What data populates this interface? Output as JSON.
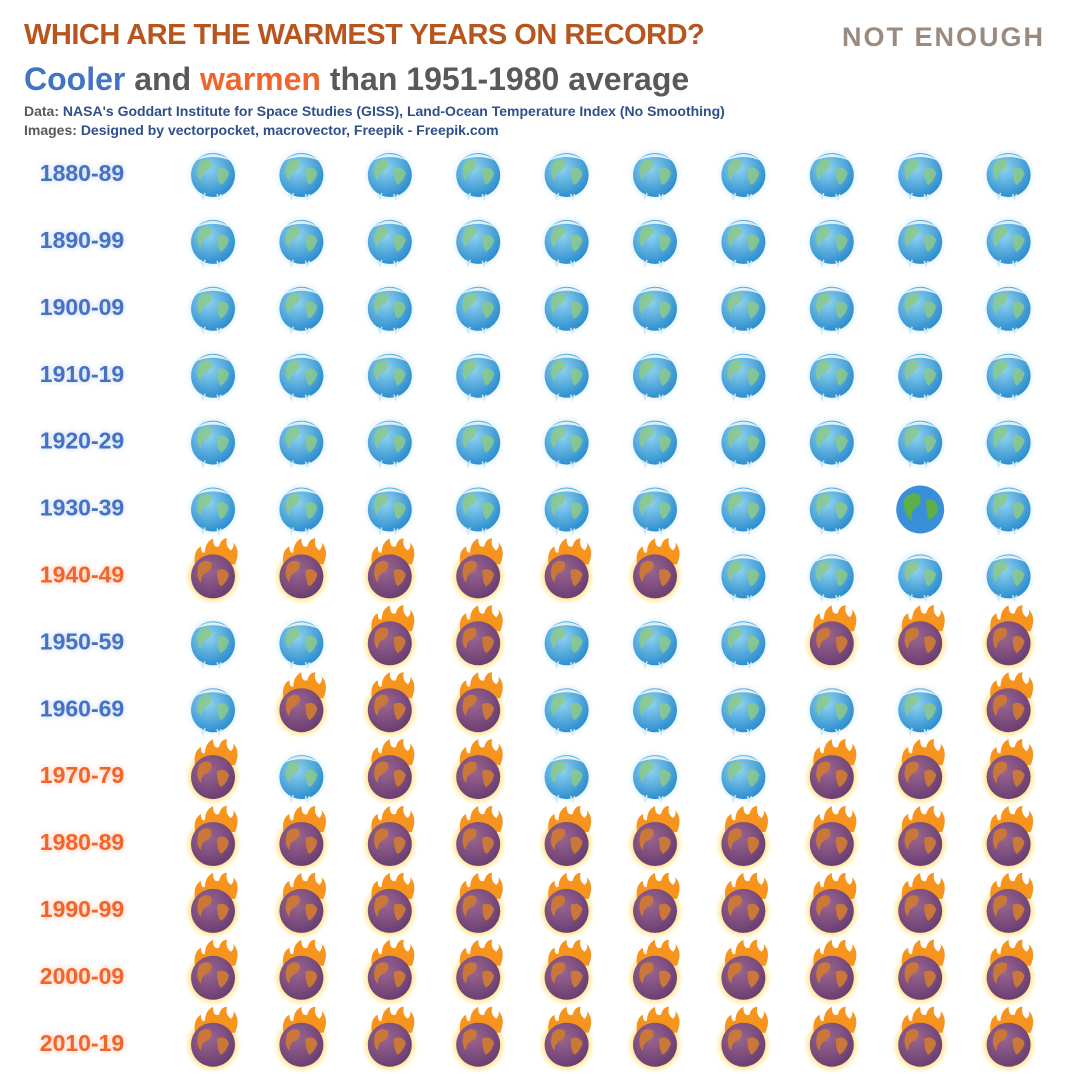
{
  "header": {
    "title": "WHICH ARE THE WARMEST YEARS ON RECORD?",
    "logo": "NOT ENOUGH",
    "subtitle": {
      "cool_word": "Cooler",
      "joiner": "and",
      "warm_word": "warmen",
      "rest": "than 1951-1980 average"
    },
    "data_source": {
      "label": "Data:",
      "text": "NASA's Goddart Institute for Space Studies (GISS), Land-Ocean Temperature Index (No Smoothing)"
    },
    "images_credit": {
      "label": "Images:",
      "text": "Designed by vectorpocket, macrovector, Freepik - Freepik.com"
    }
  },
  "grid": {
    "rows": [
      {
        "label": "1880-89",
        "style": "cool",
        "cells": [
          "cool",
          "cool",
          "cool",
          "cool",
          "cool",
          "cool",
          "cool",
          "cool",
          "cool",
          "cool"
        ]
      },
      {
        "label": "1890-99",
        "style": "cool",
        "cells": [
          "cool",
          "cool",
          "cool",
          "cool",
          "cool",
          "cool",
          "cool",
          "cool",
          "cool",
          "cool"
        ]
      },
      {
        "label": "1900-09",
        "style": "cool",
        "cells": [
          "cool",
          "cool",
          "cool",
          "cool",
          "cool",
          "cool",
          "cool",
          "cool",
          "cool",
          "cool"
        ]
      },
      {
        "label": "1910-19",
        "style": "cool",
        "cells": [
          "cool",
          "cool",
          "cool",
          "cool",
          "cool",
          "cool",
          "cool",
          "cool",
          "cool",
          "cool"
        ]
      },
      {
        "label": "1920-29",
        "style": "cool",
        "cells": [
          "cool",
          "cool",
          "cool",
          "cool",
          "cool",
          "cool",
          "cool",
          "cool",
          "cool",
          "cool"
        ]
      },
      {
        "label": "1930-39",
        "style": "cool",
        "cells": [
          "cool",
          "cool",
          "cool",
          "cool",
          "cool",
          "cool",
          "cool",
          "cool",
          "neutral",
          "cool"
        ]
      },
      {
        "label": "1940-49",
        "style": "warm",
        "cells": [
          "warm",
          "warm",
          "warm",
          "warm",
          "warm",
          "warm",
          "cool",
          "cool",
          "cool",
          "cool"
        ]
      },
      {
        "label": "1950-59",
        "style": "cool",
        "cells": [
          "cool",
          "cool",
          "warm",
          "warm",
          "cool",
          "cool",
          "cool",
          "warm",
          "warm",
          "warm"
        ]
      },
      {
        "label": "1960-69",
        "style": "cool",
        "cells": [
          "cool",
          "warm",
          "warm",
          "warm",
          "cool",
          "cool",
          "cool",
          "cool",
          "cool",
          "warm"
        ]
      },
      {
        "label": "1970-79",
        "style": "warm",
        "cells": [
          "warm",
          "cool",
          "warm",
          "warm",
          "cool",
          "cool",
          "cool",
          "warm",
          "warm",
          "warm"
        ]
      },
      {
        "label": "1980-89",
        "style": "warm",
        "cells": [
          "warm",
          "warm",
          "warm",
          "warm",
          "warm",
          "warm",
          "warm",
          "warm",
          "warm",
          "warm"
        ]
      },
      {
        "label": "1990-99",
        "style": "warm",
        "cells": [
          "warm",
          "warm",
          "warm",
          "warm",
          "warm",
          "warm",
          "warm",
          "warm",
          "warm",
          "warm"
        ]
      },
      {
        "label": "2000-09",
        "style": "warm",
        "cells": [
          "warm",
          "warm",
          "warm",
          "warm",
          "warm",
          "warm",
          "warm",
          "warm",
          "warm",
          "warm"
        ]
      },
      {
        "label": "2010-19",
        "style": "warm",
        "cells": [
          "warm",
          "warm",
          "warm",
          "warm",
          "warm",
          "warm",
          "warm",
          "warm",
          "warm",
          "warm"
        ]
      }
    ]
  }
}
